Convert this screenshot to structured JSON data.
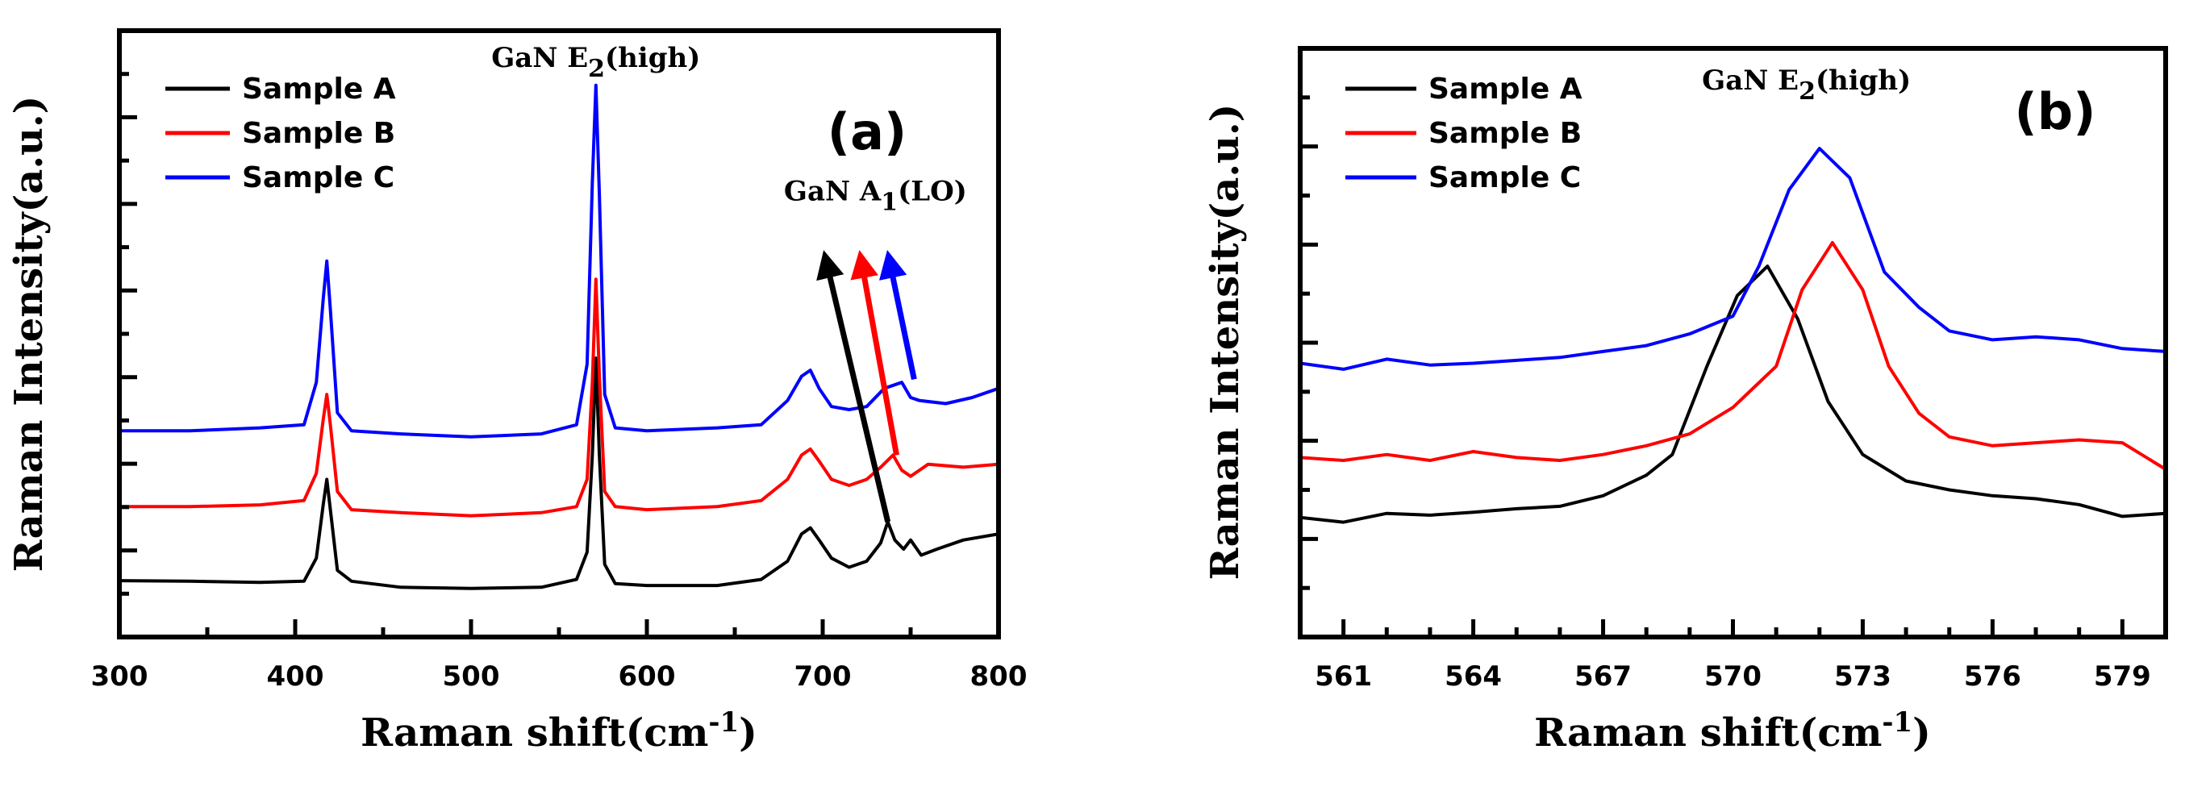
{
  "chart_data": [
    {
      "panel": "(a)",
      "type": "line",
      "xlabel": "Raman shift(cm",
      "xlabel_sup": "-1",
      "xlabel_suffix": ")",
      "ylabel": "Raman Intensity(a.u.)",
      "xlim": [
        300,
        800
      ],
      "ylim": [
        0,
        10
      ],
      "xticks": [
        300,
        400,
        500,
        600,
        700,
        800
      ],
      "grid": false,
      "legend_position": "top-left",
      "series": [
        {
          "name": "Sample A",
          "color": "#000000",
          "x": [
            300,
            340,
            380,
            405,
            412,
            416,
            418,
            420,
            424,
            432,
            460,
            500,
            540,
            560,
            566,
            569,
            571,
            573,
            576,
            582,
            600,
            640,
            665,
            680,
            688,
            693,
            698,
            705,
            715,
            725,
            733,
            737,
            741,
            746,
            750,
            756,
            765,
            780,
            800
          ],
          "y": [
            0.93,
            0.92,
            0.9,
            0.92,
            1.3,
            2.2,
            2.6,
            2.1,
            1.1,
            0.92,
            0.82,
            0.8,
            0.82,
            0.95,
            1.4,
            3.0,
            4.6,
            3.0,
            1.2,
            0.88,
            0.85,
            0.85,
            0.95,
            1.25,
            1.7,
            1.8,
            1.6,
            1.3,
            1.15,
            1.25,
            1.55,
            1.9,
            1.6,
            1.45,
            1.6,
            1.35,
            1.45,
            1.6,
            1.7
          ]
        },
        {
          "name": "Sample B",
          "color": "#ff0000",
          "x": [
            300,
            340,
            380,
            405,
            412,
            416,
            418,
            420,
            424,
            432,
            460,
            500,
            540,
            560,
            566,
            569,
            571,
            573,
            576,
            582,
            600,
            640,
            665,
            680,
            688,
            693,
            698,
            705,
            715,
            725,
            733,
            740,
            745,
            750,
            760,
            780,
            800
          ],
          "y": [
            2.15,
            2.15,
            2.18,
            2.25,
            2.7,
            3.6,
            4.0,
            3.5,
            2.4,
            2.1,
            2.05,
            2.0,
            2.05,
            2.15,
            2.6,
            4.2,
            5.9,
            4.3,
            2.4,
            2.15,
            2.1,
            2.15,
            2.25,
            2.6,
            3.0,
            3.1,
            2.9,
            2.6,
            2.5,
            2.6,
            2.8,
            3.0,
            2.75,
            2.65,
            2.85,
            2.8,
            2.85
          ]
        },
        {
          "name": "Sample C",
          "color": "#0000ff",
          "x": [
            300,
            340,
            380,
            405,
            412,
            416,
            418,
            420,
            424,
            432,
            460,
            500,
            540,
            560,
            566,
            569,
            571,
            573,
            576,
            582,
            600,
            640,
            665,
            680,
            688,
            693,
            698,
            705,
            715,
            725,
            735,
            745,
            750,
            755,
            770,
            785,
            800
          ],
          "y": [
            3.4,
            3.4,
            3.45,
            3.5,
            4.2,
            5.6,
            6.2,
            5.4,
            3.7,
            3.4,
            3.35,
            3.3,
            3.35,
            3.5,
            4.5,
            7.5,
            9.1,
            7.3,
            4.0,
            3.45,
            3.4,
            3.45,
            3.5,
            3.9,
            4.3,
            4.4,
            4.1,
            3.8,
            3.75,
            3.8,
            4.1,
            4.2,
            3.95,
            3.9,
            3.85,
            3.95,
            4.1
          ]
        }
      ],
      "annotations": [
        {
          "id": "e2",
          "text": "GaN E",
          "sub": "2",
          "suffix": "(high)",
          "x": 571,
          "y": 9.4
        },
        {
          "id": "a1",
          "text": "GaN A",
          "sub": "1",
          "suffix": "(LO)",
          "x": 730,
          "y": 7.2
        }
      ],
      "arrows": [
        {
          "color": "#000000",
          "from": [
            737,
            1.9
          ],
          "to": [
            702,
            6.2
          ]
        },
        {
          "color": "#ff0000",
          "from": [
            742,
            3.0
          ],
          "to": [
            722,
            6.2
          ]
        },
        {
          "color": "#0000ff",
          "from": [
            752,
            4.25
          ],
          "to": [
            738,
            6.2
          ]
        }
      ]
    },
    {
      "panel": "(b)",
      "type": "line",
      "xlabel": "Raman shift(cm",
      "xlabel_sup": "-1",
      "xlabel_suffix": ")",
      "ylabel": "Raman Intensity(a.u.)",
      "xlim": [
        560,
        580
      ],
      "ylim": [
        0,
        10
      ],
      "xticks": [
        561,
        564,
        567,
        570,
        573,
        576,
        579
      ],
      "grid": false,
      "legend_position": "top-left",
      "series": [
        {
          "name": "Sample A",
          "color": "#000000",
          "x": [
            560,
            561,
            562,
            563,
            564,
            565,
            566,
            567,
            568,
            568.6,
            569.4,
            570.1,
            570.8,
            571.5,
            572.2,
            573,
            574,
            575,
            576,
            577,
            578,
            579,
            580
          ],
          "y": [
            2.03,
            1.95,
            2.1,
            2.07,
            2.12,
            2.18,
            2.22,
            2.4,
            2.75,
            3.1,
            4.6,
            5.8,
            6.3,
            5.4,
            4.0,
            3.1,
            2.65,
            2.5,
            2.4,
            2.35,
            2.25,
            2.05,
            2.1
          ]
        },
        {
          "name": "Sample B",
          "color": "#ff0000",
          "x": [
            560,
            561,
            562,
            563,
            564,
            565,
            566,
            567,
            568,
            569,
            570,
            571,
            571.6,
            572.3,
            573,
            573.6,
            574.3,
            575,
            576,
            577,
            578,
            579,
            580
          ],
          "y": [
            3.05,
            3.0,
            3.1,
            3.0,
            3.15,
            3.05,
            3.0,
            3.1,
            3.25,
            3.45,
            3.9,
            4.6,
            5.9,
            6.7,
            5.9,
            4.6,
            3.8,
            3.4,
            3.25,
            3.3,
            3.35,
            3.3,
            2.85
          ]
        },
        {
          "name": "Sample C",
          "color": "#0000ff",
          "x": [
            560,
            561,
            562,
            563,
            564,
            565,
            566,
            567,
            568,
            569,
            570,
            570.6,
            571.3,
            572,
            572.7,
            573.5,
            574.3,
            575,
            576,
            577,
            578,
            579,
            580
          ],
          "y": [
            4.65,
            4.55,
            4.72,
            4.62,
            4.65,
            4.7,
            4.75,
            4.85,
            4.95,
            5.15,
            5.45,
            6.3,
            7.6,
            8.3,
            7.8,
            6.2,
            5.6,
            5.2,
            5.05,
            5.1,
            5.05,
            4.9,
            4.85
          ]
        }
      ],
      "annotations": [
        {
          "id": "e2",
          "text": "GaN E",
          "sub": "2",
          "suffix": "(high)",
          "x": 571.7,
          "y": 9.3
        }
      ],
      "arrows": []
    }
  ]
}
